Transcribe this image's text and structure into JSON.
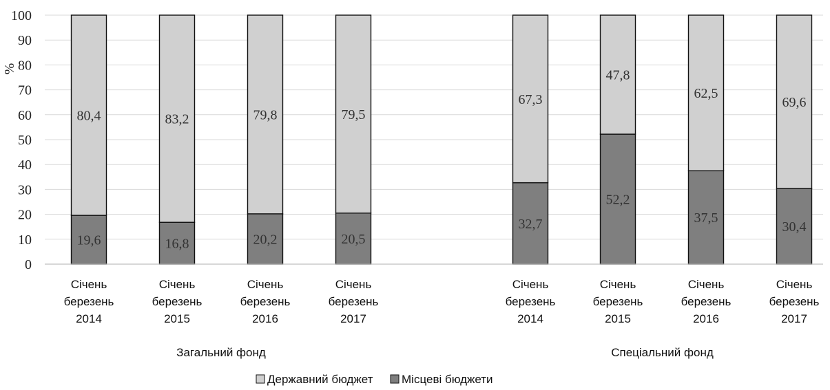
{
  "chart_data": {
    "type": "bar",
    "stacked": true,
    "ylabel": "%",
    "ylim": [
      0,
      100
    ],
    "yticks": [
      0,
      10,
      20,
      30,
      40,
      50,
      60,
      70,
      80,
      90,
      100
    ],
    "grid": true,
    "legend_position": "bottom",
    "groups": [
      {
        "name": "Загальний фонд",
        "categories": [
          [
            "Січень",
            "березень",
            "2014"
          ],
          [
            "Січень",
            "березень",
            "2015"
          ],
          [
            "Січень",
            "березень",
            "2016"
          ],
          [
            "Січень",
            "березень",
            "2017"
          ]
        ],
        "series": [
          {
            "name": "Місцеві бюджети",
            "values": [
              19.6,
              16.8,
              20.2,
              20.5
            ],
            "labels": [
              "19,6",
              "16,8",
              "20,2",
              "20,5"
            ]
          },
          {
            "name": "Державний бюджет",
            "values": [
              80.4,
              83.2,
              79.8,
              79.5
            ],
            "labels": [
              "80,4",
              "83,2",
              "79,8",
              "79,5"
            ]
          }
        ]
      },
      {
        "name": "Спеціальний фонд",
        "categories": [
          [
            "Січень",
            "березень",
            "2014"
          ],
          [
            "Січень",
            "березень",
            "2015"
          ],
          [
            "Січень",
            "березень",
            "2016"
          ],
          [
            "Січень",
            "березень",
            "2017"
          ]
        ],
        "series": [
          {
            "name": "Місцеві бюджети",
            "values": [
              32.7,
              52.2,
              37.5,
              30.4
            ],
            "labels": [
              "32,7",
              "52,2",
              "37,5",
              "30,4"
            ]
          },
          {
            "name": "Державний бюджет",
            "values": [
              67.3,
              47.8,
              62.5,
              69.6
            ],
            "labels": [
              "67,3",
              "47,8",
              "62,5",
              "69,6"
            ]
          }
        ]
      }
    ],
    "legend": [
      {
        "name": "Державний бюджет",
        "color": "#d0d0d0"
      },
      {
        "name": "Місцеві бюджети",
        "color": "#7f7f7f"
      }
    ],
    "colors": {
      "Державний бюджет": "#d0d0d0",
      "Місцеві бюджети": "#7f7f7f"
    }
  }
}
